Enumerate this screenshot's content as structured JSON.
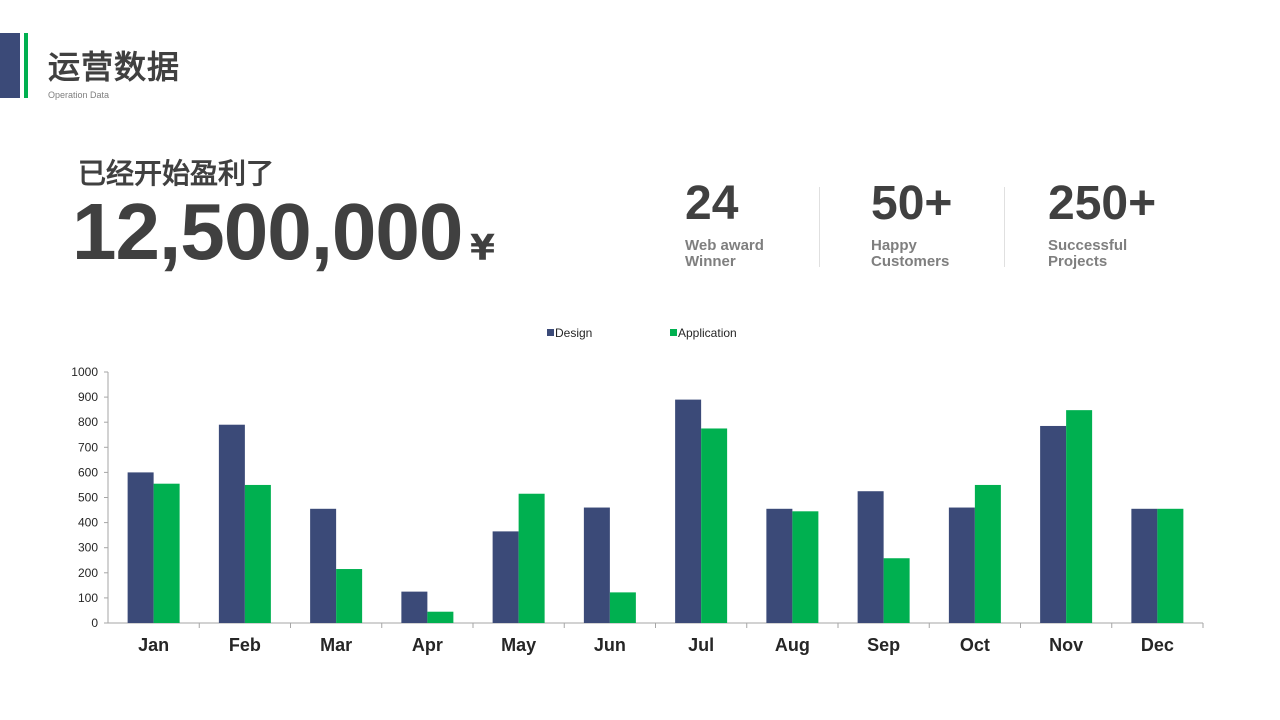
{
  "header": {
    "title": "运营数据",
    "subtitle": "Operation Data"
  },
  "summary": {
    "label": "已经开始盈利了",
    "amount": "12,500,000",
    "currency": "¥"
  },
  "stats": [
    {
      "value": "24",
      "label": "Web award\nWinner"
    },
    {
      "value": "50+",
      "label": "Happy\nCustomers"
    },
    {
      "value": "250+",
      "label": "Successful\nProjects"
    }
  ],
  "colors": {
    "navy": "#3b4a78",
    "green": "#00b050",
    "text": "#404040"
  },
  "chart_data": {
    "type": "bar",
    "categories": [
      "Jan",
      "Feb",
      "Mar",
      "Apr",
      "May",
      "Jun",
      "Jul",
      "Aug",
      "Sep",
      "Oct",
      "Nov",
      "Dec"
    ],
    "series": [
      {
        "name": "Design",
        "color": "#3b4a78",
        "values": [
          600,
          790,
          455,
          125,
          365,
          460,
          890,
          455,
          525,
          460,
          785,
          455
        ]
      },
      {
        "name": "Application",
        "color": "#00b050",
        "values": [
          555,
          550,
          215,
          45,
          515,
          122,
          775,
          445,
          258,
          550,
          848,
          455
        ]
      }
    ],
    "ylim": [
      0,
      1000
    ],
    "yticks": [
      "0",
      "100",
      "200",
      "300",
      "400",
      "500",
      "600",
      "700",
      "800",
      "900",
      "1000"
    ],
    "legend_position": "top",
    "grid": false
  }
}
